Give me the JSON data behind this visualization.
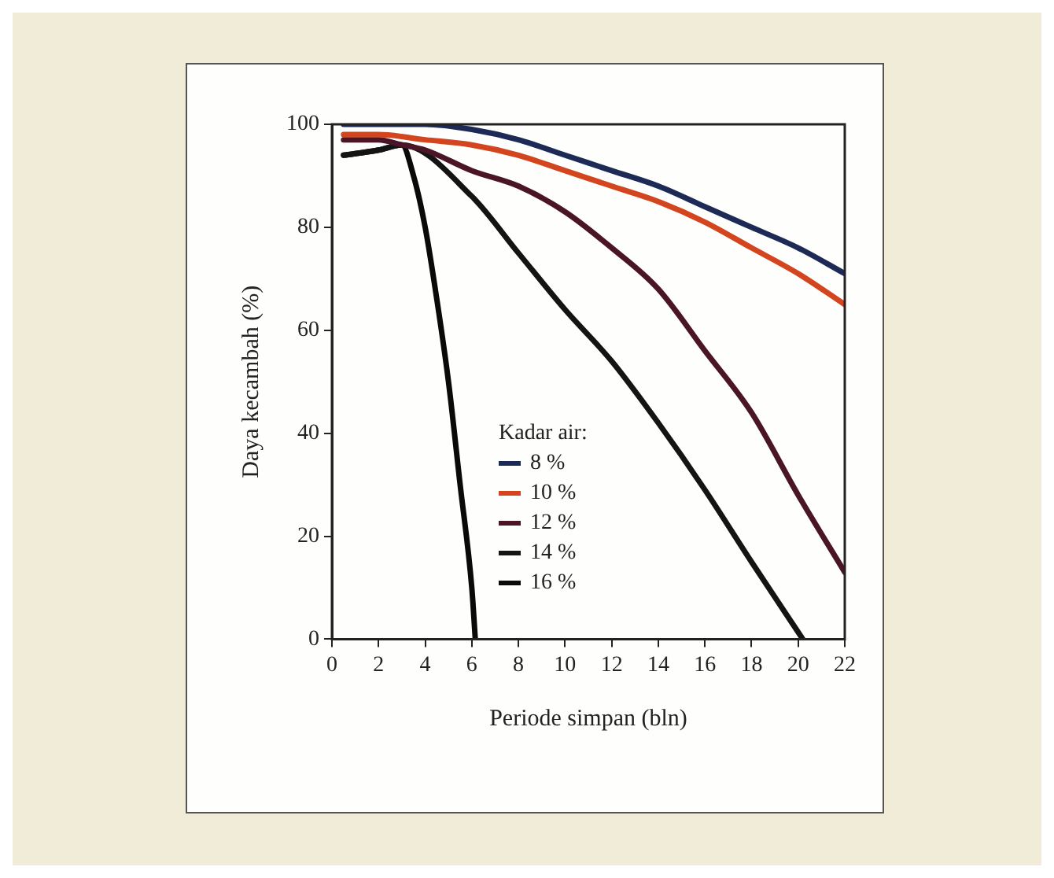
{
  "chart_data": {
    "type": "line",
    "xlabel": "Periode simpan (bln)",
    "ylabel": "Daya kecambah (%)",
    "legend_title": "Kadar air:",
    "legend": "center",
    "xlim": [
      0,
      22
    ],
    "xticks": [
      0,
      2,
      4,
      6,
      8,
      10,
      12,
      14,
      16,
      18,
      20,
      22
    ],
    "ylim": [
      0,
      100
    ],
    "yticks": [
      0,
      20,
      40,
      60,
      80,
      100
    ],
    "grid": false,
    "marker": "none",
    "line_style": "solid",
    "series": [
      {
        "name": "8 %",
        "color": "#1c2a55",
        "x": [
          0.5,
          2,
          4,
          6,
          8,
          10,
          12,
          14,
          16,
          18,
          20,
          22
        ],
        "values": [
          100,
          100,
          100,
          99,
          97,
          94,
          91,
          88,
          84,
          80,
          76,
          71
        ]
      },
      {
        "name": "10 %",
        "color": "#d2451e",
        "x": [
          0.5,
          2,
          4,
          6,
          8,
          10,
          12,
          14,
          16,
          18,
          20,
          22
        ],
        "values": [
          98,
          98,
          97,
          96,
          94,
          91,
          88,
          85,
          81,
          76,
          71,
          65
        ]
      },
      {
        "name": "12 %",
        "color": "#4a1526",
        "x": [
          0.5,
          2,
          3,
          4,
          6,
          8,
          10,
          12,
          14,
          16,
          18,
          20,
          22
        ],
        "values": [
          97,
          97,
          96,
          95,
          91,
          88,
          83,
          76,
          68,
          56,
          44,
          28,
          13
        ]
      },
      {
        "name": "14 %",
        "color": "#141414",
        "x": [
          0.5,
          2,
          3,
          6,
          8,
          10,
          12,
          14,
          16,
          18,
          20.2
        ],
        "values": [
          94,
          95,
          96,
          86,
          75,
          64,
          54,
          42,
          29,
          15,
          0
        ]
      },
      {
        "name": "16 %",
        "color": "#0a0a0a",
        "x": [
          0.5,
          2,
          3,
          3.5,
          4,
          4.5,
          5,
          5.5,
          6,
          6.15
        ],
        "values": [
          94,
          95,
          96,
          90,
          80,
          66,
          50,
          30,
          10,
          0
        ]
      }
    ]
  }
}
